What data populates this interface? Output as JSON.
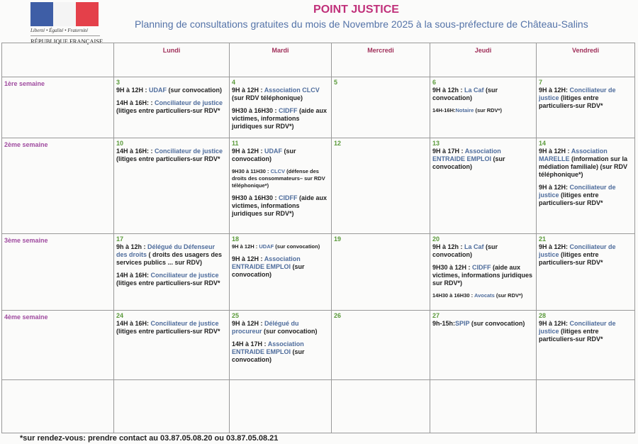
{
  "header": {
    "logo_motto": "Liberté • Égalité • Fraternité",
    "logo_name": "RÉPUBLIQUE FRANÇAISE",
    "title": "POINT JUSTICE",
    "subtitle": "Planning de consultations gratuites du mois de Novembre 2025 à la sous-préfecture de Château-Salins"
  },
  "colors": {
    "title": "#c0307a",
    "subtitle": "#5473a8",
    "day_header": "#a0305a",
    "week_label": "#a04ca0",
    "day_number": "#5a9a3a",
    "organisation": "#4e6c9c"
  },
  "days": [
    "Lundi",
    "Mardi",
    "Mercredi",
    "Jeudi",
    "Vendredi"
  ],
  "weeks": [
    {
      "label": "1ère semaine",
      "cells": [
        {
          "num": "3",
          "entries": [
            {
              "segs": [
                [
                  "9H à 12H : ",
                  0
                ],
                [
                  "UDAF",
                  1
                ],
                [
                  " (sur convocation)",
                  0
                ]
              ]
            },
            {
              "segs": [
                [
                  "14H à 16H: : ",
                  0
                ],
                [
                  "Conciliateur de justice",
                  1
                ],
                [
                  " (litiges entre particuliers-sur RDV*",
                  0
                ]
              ]
            }
          ]
        },
        {
          "num": "4",
          "entries": [
            {
              "segs": [
                [
                  "9H à 12H : ",
                  0
                ],
                [
                  "Association CLCV",
                  1
                ],
                [
                  " (sur RDV téléphonique)",
                  0
                ]
              ]
            },
            {
              "segs": [
                [
                  "9H30 à 16H30 : ",
                  0
                ],
                [
                  "CIDFF",
                  1
                ],
                [
                  " (aide aux victimes, informations juridiques sur RDV*)",
                  0
                ]
              ]
            }
          ]
        },
        {
          "num": "5",
          "entries": []
        },
        {
          "num": "6",
          "entries": [
            {
              "segs": [
                [
                  "9H à 12h : ",
                  0
                ],
                [
                  "La Caf",
                  1
                ],
                [
                  " (sur convocation)",
                  0
                ]
              ]
            },
            {
              "small": true,
              "segs": [
                [
                  "14H-16H:",
                  0
                ],
                [
                  "Notaire",
                  1
                ],
                [
                  " (sur RDV*)",
                  0
                ]
              ]
            }
          ]
        },
        {
          "num": "7",
          "entries": [
            {
              "segs": [
                [
                  "9H à 12H: ",
                  0
                ],
                [
                  "Conciliateur de justice",
                  1
                ],
                [
                  " (litiges entre particuliers-sur RDV*",
                  0
                ]
              ]
            }
          ]
        }
      ]
    },
    {
      "label": "2ème semaine",
      "cells": [
        {
          "num": "10",
          "entries": [
            {
              "segs": [
                [
                  "14H à 16H: : ",
                  0
                ],
                [
                  "Conciliateur de justice",
                  1
                ],
                [
                  " (litiges entre particuliers-sur RDV*",
                  0
                ]
              ]
            }
          ]
        },
        {
          "num": "11",
          "entries": [
            {
              "segs": [
                [
                  "9H à 12H : ",
                  0
                ],
                [
                  "UDAF",
                  1
                ],
                [
                  " (sur convocation)",
                  0
                ]
              ]
            },
            {
              "small": true,
              "segs": [
                [
                  "9H30 à 11H30 : ",
                  0
                ],
                [
                  "CLCV",
                  1
                ],
                [
                  " (défense des droits des consommateurs– sur RDV téléphonique*)",
                  0
                ]
              ]
            },
            {
              "segs": [
                [
                  "9H30 à 16H30 : ",
                  0
                ],
                [
                  "CIDFF",
                  1
                ],
                [
                  " (aide aux victimes, informations juridiques sur RDV*)",
                  0
                ]
              ]
            }
          ]
        },
        {
          "num": "12",
          "entries": []
        },
        {
          "num": "13",
          "entries": [
            {
              "segs": [
                [
                  "9H à 17H : ",
                  0
                ],
                [
                  "Association ENTRAIDE EMPLOI",
                  1
                ],
                [
                  " (sur convocation)",
                  0
                ]
              ]
            }
          ]
        },
        {
          "num": "14",
          "entries": [
            {
              "segs": [
                [
                  "9H à 12H : ",
                  0
                ],
                [
                  "Association MARELLE",
                  1
                ],
                [
                  " (information sur la médiation familiale) (sur RDV téléphonique*)",
                  0
                ]
              ]
            },
            {
              "segs": [
                [
                  "9H à 12H: ",
                  0
                ],
                [
                  "Conciliateur de justice",
                  1
                ],
                [
                  " (litiges entre particuliers-sur RDV*",
                  0
                ]
              ]
            }
          ]
        }
      ]
    },
    {
      "label": "3ème semaine",
      "cells": [
        {
          "num": "17",
          "entries": [
            {
              "segs": [
                [
                  "9h à 12h : ",
                  0
                ],
                [
                  "Délégué du Défenseur des droits",
                  1
                ],
                [
                  " ( droits des usagers des services publics ... sur RDV)",
                  0
                ]
              ]
            },
            {
              "segs": [
                [
                  "14H à 16H: ",
                  0
                ],
                [
                  "Conciliateur de justice",
                  1
                ],
                [
                  " (litiges entre particuliers-sur RDV*",
                  0
                ]
              ]
            }
          ]
        },
        {
          "num": "18",
          "entries": [
            {
              "small": true,
              "segs": [
                [
                  "9H à 12H : ",
                  0
                ],
                [
                  "UDAF",
                  1
                ],
                [
                  " (sur convocation)",
                  0
                ]
              ]
            },
            {
              "segs": [
                [
                  "9H à 12H : ",
                  0
                ],
                [
                  "Association ENTRAIDE EMPLOI",
                  1
                ],
                [
                  " (sur convocation)",
                  0
                ]
              ]
            }
          ]
        },
        {
          "num": "19",
          "entries": []
        },
        {
          "num": "20",
          "entries": [
            {
              "segs": [
                [
                  "9H à 12h : ",
                  0
                ],
                [
                  "La Caf",
                  1
                ],
                [
                  " (sur convocation)",
                  0
                ]
              ]
            },
            {
              "segs": [
                [
                  "9H30 à 12H : ",
                  0
                ],
                [
                  "CIDFF",
                  1
                ],
                [
                  " (aide aux victimes, informations juridiques sur RDV*)",
                  0
                ]
              ]
            },
            {
              "small": true,
              "segs": [
                [
                  "14H30 à 16H30 : ",
                  0
                ],
                [
                  "Avocats",
                  1
                ],
                [
                  " (sur RDV*)",
                  0
                ]
              ]
            }
          ]
        },
        {
          "num": "21",
          "entries": [
            {
              "segs": [
                [
                  "9H à 12H: ",
                  0
                ],
                [
                  "Conciliateur de justice",
                  1
                ],
                [
                  " (litiges entre particuliers-sur RDV*",
                  0
                ]
              ]
            }
          ]
        }
      ]
    },
    {
      "label": "4ème semaine",
      "cells": [
        {
          "num": "24",
          "entries": [
            {
              "segs": [
                [
                  "14H à 16H: ",
                  0
                ],
                [
                  "Conciliateur de justice",
                  1
                ],
                [
                  " (litiges entre particuliers-sur RDV*",
                  0
                ]
              ]
            }
          ]
        },
        {
          "num": "25",
          "entries": [
            {
              "segs": [
                [
                  "9H à 12H : ",
                  0
                ],
                [
                  "Délégué du procureur",
                  1
                ],
                [
                  " (sur convocation)",
                  0
                ]
              ]
            },
            {
              "segs": [
                [
                  "14H à 17H : ",
                  0
                ],
                [
                  "Association ENTRAIDE EMPLOI",
                  1
                ],
                [
                  " (sur convocation)",
                  0
                ]
              ]
            }
          ]
        },
        {
          "num": "26",
          "entries": []
        },
        {
          "num": "27",
          "entries": [
            {
              "segs": [
                [
                  "9h-15h:",
                  0
                ],
                [
                  "SPIP",
                  1
                ],
                [
                  " (sur convocation)",
                  0
                ]
              ]
            }
          ]
        },
        {
          "num": "28",
          "entries": [
            {
              "segs": [
                [
                  "9H à 12H: ",
                  0
                ],
                [
                  "Conciliateur de justice",
                  1
                ],
                [
                  " (litiges entre particuliers-sur RDV*",
                  0
                ]
              ]
            }
          ]
        }
      ]
    },
    {
      "label": "",
      "cells": [
        {
          "num": "",
          "entries": []
        },
        {
          "num": "",
          "entries": []
        },
        {
          "num": "",
          "entries": []
        },
        {
          "num": "",
          "entries": []
        },
        {
          "num": "",
          "entries": []
        }
      ]
    }
  ],
  "footer": "*sur rendez-vous: prendre contact au 03.87.05.08.20 ou 03.87.05.08.21"
}
